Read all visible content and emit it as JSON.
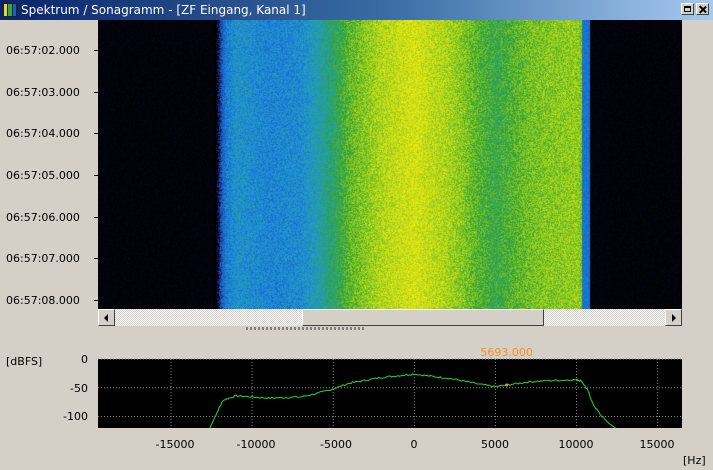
{
  "window": {
    "title": "Spektrum / Sonagramm - [ZF Eingang, Kanal 1]",
    "icon": "spectrum-app-icon",
    "buttons": [
      "restore-icon",
      "close-icon"
    ]
  },
  "sonagram": {
    "time_labels": [
      "06:57:02.000",
      "06:57:03.000",
      "06:57:04.000",
      "06:57:05.000",
      "06:57:06.000",
      "06:57:07.000",
      "06:57:08.000"
    ],
    "palette": [
      "#000000",
      "#1a237e",
      "#1565c0",
      "#1e88e5",
      "#26a69a",
      "#2e9d3a",
      "#7cc520",
      "#c8dc18",
      "#f0e810"
    ],
    "frequency_range_hz": [
      -19500,
      16500
    ],
    "signal_band_hz": [
      -12000,
      10500
    ],
    "scroll_position": 0.34,
    "scroll_visible": 0.44
  },
  "spectrum": {
    "unit_y": "[dBFS]",
    "unit_x": "[Hz]",
    "y_ticks": [
      "0",
      "-50",
      "-100"
    ],
    "x_ticks": [
      "-15000",
      "-10000",
      "-5000",
      "0",
      "5000",
      "10000",
      "15000"
    ],
    "marker": {
      "label": "5693.000",
      "value_hz": 5693,
      "color": "#ff8c1a"
    }
  },
  "chart_data": {
    "type": "line",
    "x_unit": "Hz",
    "y_unit": "dBFS",
    "xlim": [
      -19500,
      16500
    ],
    "ylim": [
      -120,
      0
    ],
    "grid": true,
    "line_color": "#2dd42d",
    "x": [
      -12600,
      -12200,
      -11800,
      -11000,
      -10000,
      -9000,
      -8000,
      -7000,
      -6000,
      -5000,
      -4000,
      -3000,
      -2000,
      -1000,
      0,
      1000,
      2000,
      3000,
      4000,
      5000,
      6000,
      7000,
      8000,
      9000,
      10000,
      10300,
      10700,
      11000,
      11500,
      12000,
      12400
    ],
    "y": [
      -120,
      -95,
      -72,
      -64,
      -66,
      -68,
      -67,
      -66,
      -60,
      -52,
      -42,
      -37,
      -32,
      -29,
      -26,
      -30,
      -33,
      -38,
      -44,
      -48,
      -44,
      -40,
      -38,
      -37,
      -36,
      -38,
      -55,
      -78,
      -98,
      -112,
      -120
    ]
  }
}
